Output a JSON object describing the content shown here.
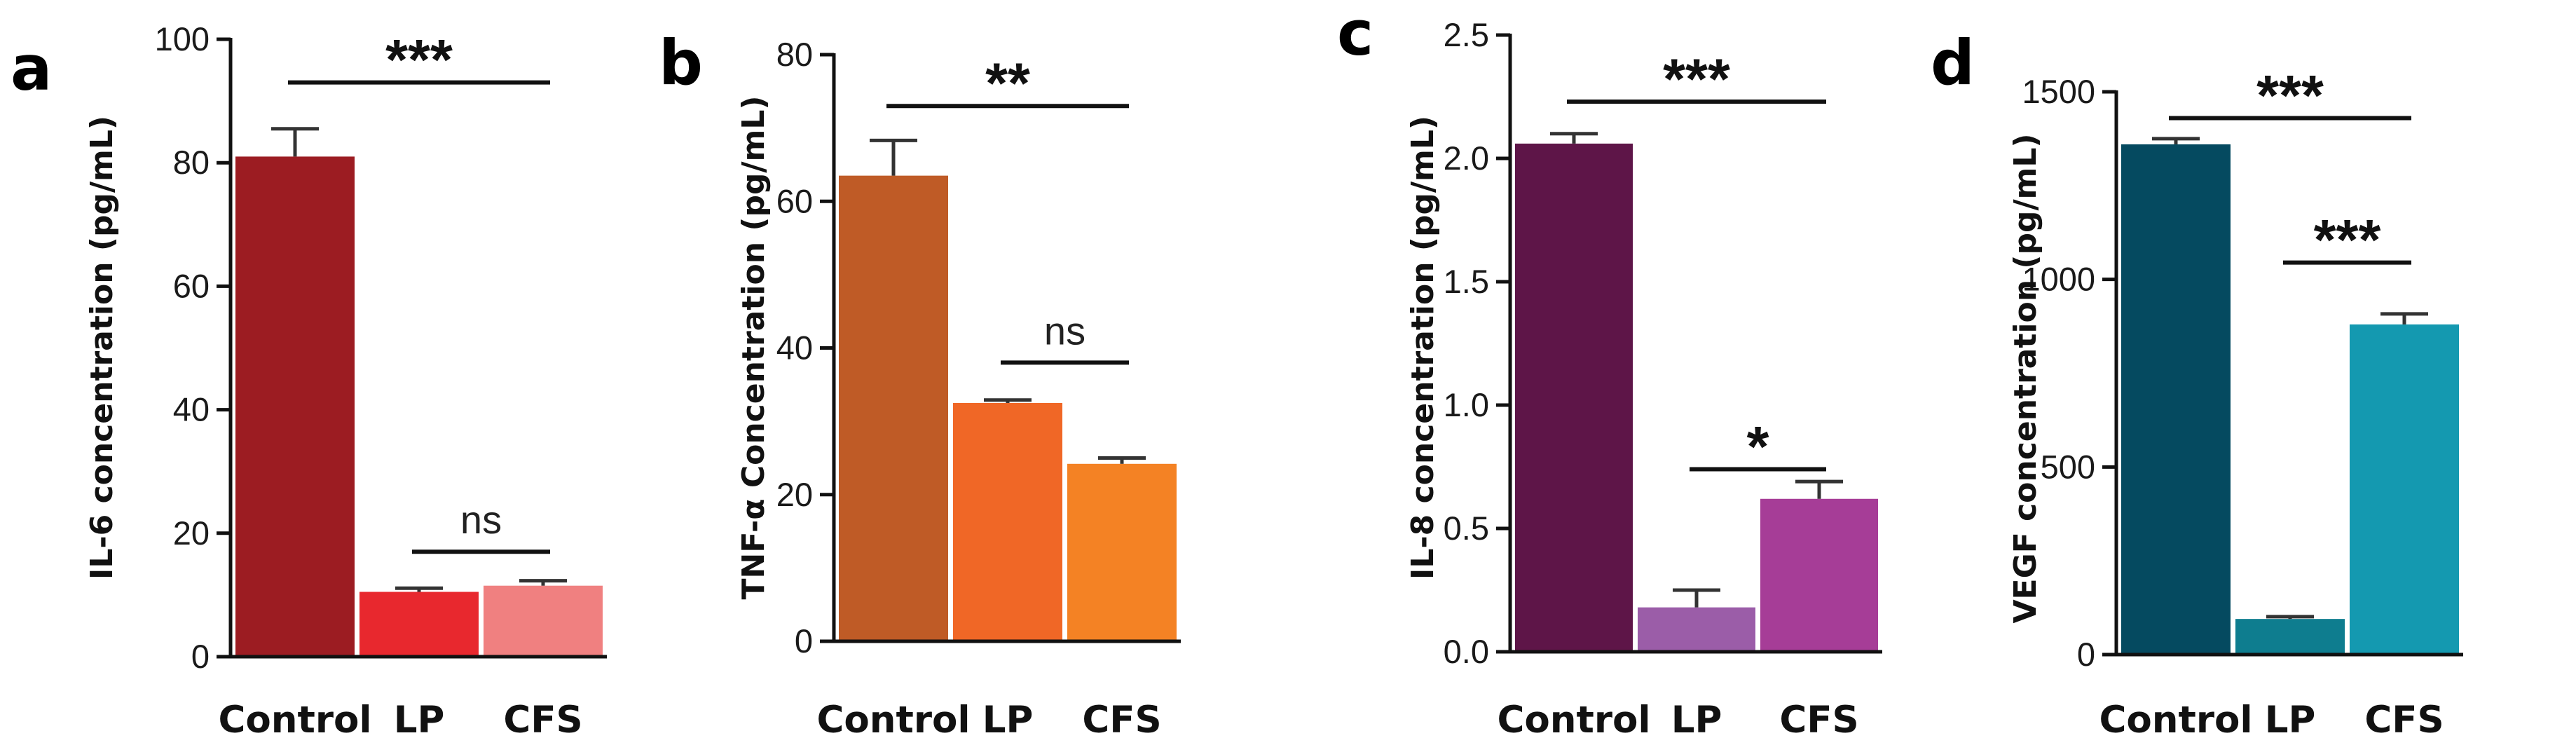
{
  "chart_data": [
    {
      "panel": "a",
      "type": "bar",
      "categories": [
        "Control",
        "LP",
        "CFS"
      ],
      "values": [
        81,
        10.5,
        11.5
      ],
      "errors": [
        4.5,
        0.6,
        0.8
      ],
      "colors": [
        "#9c1c22",
        "#e8282e",
        "#f08080"
      ],
      "ylabel": "IL-6 concentration (pg/mL)",
      "ylim": [
        0,
        100
      ],
      "yticks": [
        "0",
        "20",
        "40",
        "60",
        "80",
        "100"
      ],
      "yticks_values": [
        0,
        20,
        40,
        60,
        80,
        100
      ],
      "significance": [
        {
          "from": 0,
          "to": 2,
          "label": "***",
          "y": 93
        },
        {
          "from": 1,
          "to": 2,
          "label": "ns",
          "y": 17
        }
      ]
    },
    {
      "panel": "b",
      "type": "bar",
      "categories": [
        "Control",
        "LP",
        "CFS"
      ],
      "values": [
        63.5,
        32.5,
        24.2
      ],
      "errors": [
        4.8,
        0.4,
        0.8
      ],
      "colors": [
        "#bf5b26",
        "#f06726",
        "#f48224"
      ],
      "ylabel": "TNF-α Concentration (pg/mL)",
      "ylim": [
        0,
        80
      ],
      "yticks": [
        "0",
        "20",
        "40",
        "60",
        "80"
      ],
      "yticks_values": [
        0,
        20,
        40,
        60,
        80
      ],
      "significance": [
        {
          "from": 0,
          "to": 2,
          "label": "**",
          "y": 73
        },
        {
          "from": 1,
          "to": 2,
          "label": "ns",
          "y": 38
        }
      ]
    },
    {
      "panel": "c",
      "type": "bar",
      "categories": [
        "Control",
        "LP",
        "CFS"
      ],
      "values": [
        2.06,
        0.18,
        0.62
      ],
      "errors": [
        0.04,
        0.07,
        0.07
      ],
      "colors": [
        "#5e1548",
        "#9b5da8",
        "#a63d97"
      ],
      "ylabel": "IL-8 concentration (pg/mL)",
      "ylim": [
        0,
        2.5
      ],
      "yticks": [
        "0.0",
        "0.5",
        "1.0",
        "1.5",
        "2.0",
        "2.5"
      ],
      "yticks_values": [
        0,
        0.5,
        1.0,
        1.5,
        2.0,
        2.5
      ],
      "significance": [
        {
          "from": 0,
          "to": 2,
          "label": "***",
          "y": 2.23
        },
        {
          "from": 1,
          "to": 2,
          "label": "*",
          "y": 0.74
        }
      ]
    },
    {
      "panel": "d",
      "type": "bar",
      "categories": [
        "Control",
        "LP",
        "CFS"
      ],
      "values": [
        1360,
        95,
        880
      ],
      "errors": [
        15,
        6,
        28
      ],
      "colors": [
        "#054a60",
        "#0e7d8f",
        "#1499b0"
      ],
      "ylabel": "VEGF concentration (pg/mL)",
      "ylim": [
        0,
        1500
      ],
      "yticks": [
        "0",
        "500",
        "1000",
        "1500"
      ],
      "yticks_values": [
        0,
        500,
        1000,
        1500
      ],
      "significance": [
        {
          "from": 0,
          "to": 2,
          "label": "***",
          "y": 1430
        },
        {
          "from": 1,
          "to": 2,
          "label": "***",
          "y": 1045
        }
      ]
    }
  ]
}
